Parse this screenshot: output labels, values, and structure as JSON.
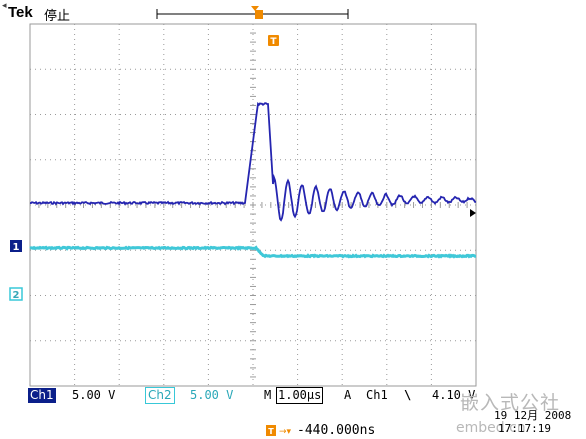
{
  "header": {
    "brand": "Tek",
    "status": "停止"
  },
  "channels": [
    {
      "id": "ch1",
      "marker": "1",
      "color": "#1a1aa0"
    },
    {
      "id": "ch2",
      "marker": "2",
      "color": "#38c8d8"
    }
  ],
  "readouts": {
    "ch1_label": "Ch1",
    "ch1_scale": "5.00 V",
    "ch2_label": "Ch2",
    "ch2_scale": "5.00 V",
    "timebase_prefix": "M",
    "timebase": "1.00µs",
    "trigger_mode": "A",
    "trigger_source": "Ch1",
    "trigger_slope": "\\",
    "trigger_level": "4.10 V",
    "trigger_position": "-440.000ns",
    "trigger_marker": "T"
  },
  "datetime": {
    "date": "19 12月 2008",
    "time": "17:17:19"
  },
  "watermark": {
    "line1": "嵌入式公社",
    "line2": "embed.cn"
  },
  "colors": {
    "ch1": "#2525b0",
    "ch2": "#40c8d8",
    "grid": "#9a9a9a",
    "trigger": "#f08a00",
    "label_bg": "#0b1f8a"
  }
}
